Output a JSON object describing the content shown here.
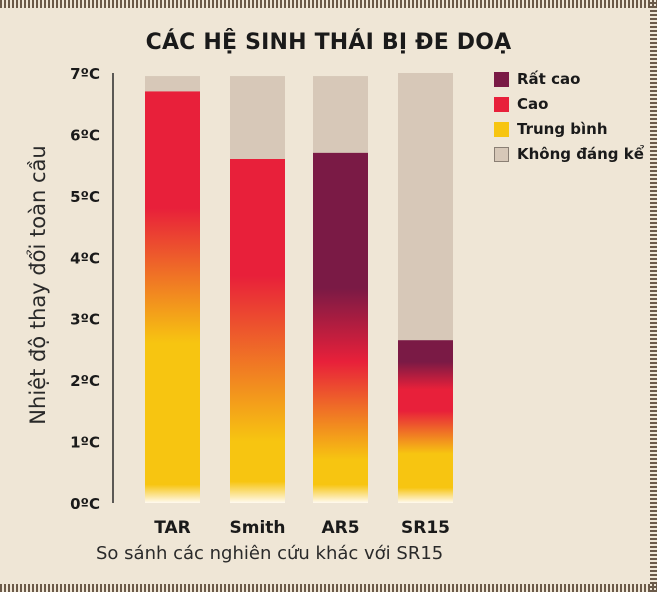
{
  "chart_data": {
    "type": "bar",
    "stacked": true,
    "title": "CÁC HỆ SINH THÁI BỊ ĐE DOẠ",
    "xlabel": "So sánh các nghiên cứu khác với SR15",
    "ylabel": "Nhiệt độ thay đổi toàn cầu",
    "ylim": [
      0,
      7
    ],
    "yticks": [
      "0ºC",
      "1ºC",
      "2ºC",
      "3ºC",
      "4ºC",
      "5ºC",
      "6ºC",
      "7ºC"
    ],
    "categories": [
      "TAR",
      "Smith",
      "AR5",
      "SR15"
    ],
    "bar_tops": [
      6.95,
      6.95,
      6.95,
      7.0
    ],
    "risk_fill_tops": [
      6.7,
      5.6,
      5.7,
      2.65
    ],
    "legend": [
      {
        "label": "Rất cao",
        "color": "#7a1a45"
      },
      {
        "label": "Cao",
        "color": "#e8203a"
      },
      {
        "label": "Trung bình",
        "color": "#f7c511"
      },
      {
        "label": "Không đáng kể",
        "color": "#d7c8b8"
      }
    ],
    "gradient_stops": {
      "TAR": [
        {
          "at": 0.0,
          "level": "white"
        },
        {
          "at": 0.3,
          "level": "Trung bình"
        },
        {
          "at": 2.6,
          "level": "Trung bình"
        },
        {
          "at": 4.8,
          "level": "Cao"
        },
        {
          "at": 6.7,
          "level": "Cao"
        }
      ],
      "Smith": [
        {
          "at": 0.0,
          "level": "white"
        },
        {
          "at": 0.35,
          "level": "Trung bình"
        },
        {
          "at": 1.0,
          "level": "Trung bình"
        },
        {
          "at": 3.7,
          "level": "Cao"
        },
        {
          "at": 5.6,
          "level": "Cao"
        }
      ],
      "AR5": [
        {
          "at": 0.0,
          "level": "white"
        },
        {
          "at": 0.3,
          "level": "Trung bình"
        },
        {
          "at": 0.7,
          "level": "Trung bình"
        },
        {
          "at": 2.3,
          "level": "Cao"
        },
        {
          "at": 3.5,
          "level": "Rất cao"
        },
        {
          "at": 5.7,
          "level": "Rất cao"
        }
      ],
      "SR15": [
        {
          "at": 0.0,
          "level": "white"
        },
        {
          "at": 0.25,
          "level": "Trung bình"
        },
        {
          "at": 0.8,
          "level": "Trung bình"
        },
        {
          "at": 1.5,
          "level": "Cao"
        },
        {
          "at": 1.85,
          "level": "Cao"
        },
        {
          "at": 2.3,
          "level": "Rất cao"
        },
        {
          "at": 2.65,
          "level": "Rất cao"
        }
      ]
    },
    "grid": false,
    "legend_position": "right"
  }
}
